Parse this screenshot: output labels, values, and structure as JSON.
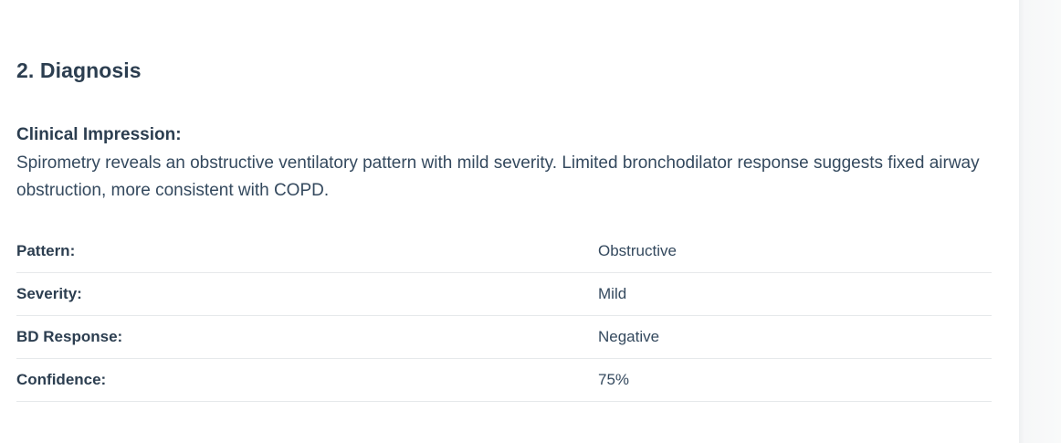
{
  "diagnosis": {
    "section_title": "2. Diagnosis",
    "impression_label": "Clinical Impression:",
    "impression_text": "Spirometry reveals an obstructive ventilatory pattern with mild severity. Limited bronchodilator response suggests fixed airway obstruction, more consistent with COPD.",
    "details": [
      {
        "label": "Pattern:",
        "value": "Obstructive"
      },
      {
        "label": "Severity:",
        "value": "Mild"
      },
      {
        "label": "BD Response:",
        "value": "Negative"
      },
      {
        "label": "Confidence:",
        "value": "75%"
      }
    ]
  }
}
